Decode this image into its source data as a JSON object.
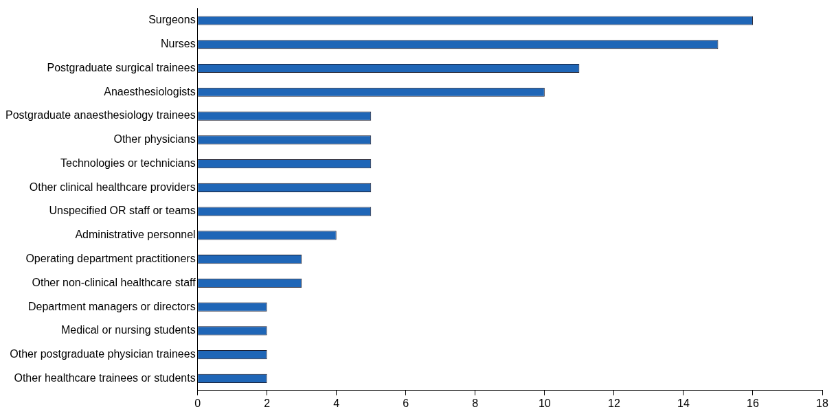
{
  "chart_data": {
    "type": "bar",
    "orientation": "horizontal",
    "categories": [
      "Surgeons",
      "Nurses",
      "Postgraduate surgical trainees",
      "Anaesthesiologists",
      "Postgraduate anaesthesiology trainees",
      "Other physicians",
      "Technologies or technicians",
      "Other clinical healthcare providers",
      "Unspecified OR staff or teams",
      "Administrative personnel",
      "Operating department practitioners",
      "Other non-clinical healthcare staff",
      "Department managers or directors",
      "Medical or nursing students",
      "Other postgraduate physician trainees",
      "Other healthcare trainees or students"
    ],
    "values": [
      16,
      15,
      11,
      10,
      5,
      5,
      5,
      5,
      5,
      4,
      3,
      3,
      2,
      2,
      2,
      2
    ],
    "color": "#1f66b7",
    "xlim": [
      0,
      18
    ],
    "xticks": [
      0,
      2,
      4,
      6,
      8,
      10,
      12,
      14,
      16,
      18
    ],
    "grid": false,
    "legend": false
  }
}
